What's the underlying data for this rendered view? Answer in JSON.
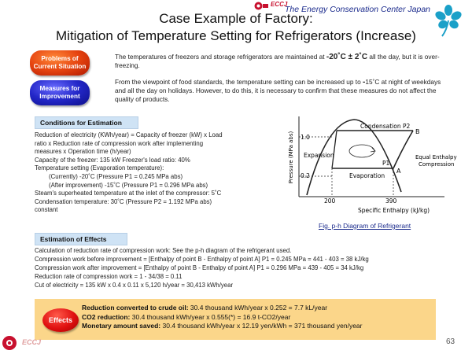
{
  "header": {
    "logo_text": "ECCJ",
    "org_name": "The Energy Conservation Center Japan",
    "title_line1": "Case Example of Factory:",
    "title_line2": "Mitigation of Temperature Setting for Refrigerators (Increase)"
  },
  "labels": {
    "problems": "Problems of Current Situation",
    "measures": "Measures for Improvement"
  },
  "problems_text": {
    "before": "The temperatures of freezers and storage refrigerators are maintained at ",
    "highlight": "-20˚C ± 2˚C",
    "after": " all the day, but it is over-freezing."
  },
  "measures_text": {
    "before": "From the viewpoint of food standards, the temperature setting can be increased up to ",
    "highlight": "-",
    "after": "15˚C at night of weekdays and all the day on holidays. However, to do this, it is necessary to confirm that these measures do not affect the quality of products."
  },
  "conditions": {
    "heading": "Conditions for Estimation",
    "lines": [
      "Reduction of electricity (KWh/year) = Capacity of freezer (kW) x Load",
      "ratio x Reduction rate of compression work after implementing",
      "measures x Operation time (h/year)",
      "Capacity of the freezer: 135 kW Freezer's load ratio: 40%",
      "Temperature setting (Evaporation temperature):",
      "(Currently) -20˚C (Pressure P1 = 0.245 MPa abs)",
      "(After improvement) -15˚C (Pressure P1 = 0.296 MPa abs)",
      "Steam's superheated temperature at the inlet of the compressor: 5˚C",
      "Condensation temperature: 30˚C (Pressure P2 = 1.192 MPa abs)",
      "constant"
    ]
  },
  "diagram": {
    "ylabel": "Pressure (MPa abs)",
    "xlabel": "Specific Enthalpy (kJ/kg)",
    "ytick_high": "1.0",
    "ytick_low": "0.2",
    "xtick_left": "200",
    "xtick_right": "390",
    "condensation": "Condensation P2",
    "expansion": "Expansion",
    "evaporation": "Evaporation",
    "p1": "P1",
    "point_a": "A",
    "point_b": "B",
    "equal_enthalpy": "Equal Enthalpy",
    "compression": "Compression",
    "caption": "Fig. p-h Diagram of Refrigerant"
  },
  "effects": {
    "heading": "Estimation of Effects",
    "lines": [
      "Calculation of reduction rate of compression work: See the p-h diagram of the refrigerant used.",
      "Compression work before improvement = [Enthalpy of point B - Enthalpy of point A] P1 = 0.245 MPa = 441 - 403 = 38 kJ/kg",
      "Compression work after improvement = [Enthalpy of point B - Enthalpy of point A] P1 = 0.296 MPa = 439 - 405 = 34 kJ/kg",
      "Reduction rate of compression work = 1 - 34/38 = 0.11",
      "Cut of electricity = 135 kW x 0.4 x 0.11 x 5,120 h/year = 30,413 kWh/year"
    ],
    "badge": "Effects",
    "crude_label": "Reduction converted to crude oil:",
    "crude_value": " 30.4 thousand kWh/year x 0.252 = 7.7 kL/year",
    "co2_label": "CO2 reduction:",
    "co2_value": " 30.4 thousand kWh/year x 0.555(*) = 16.9 t-CO2/year",
    "money_label": "Monetary amount saved:",
    "money_value": " 30.4 thousand kWh/year x 12.19 yen/kWh = 371 thousand yen/year"
  },
  "footer": {
    "logo_text": "ECCJ",
    "page_number": "63"
  }
}
